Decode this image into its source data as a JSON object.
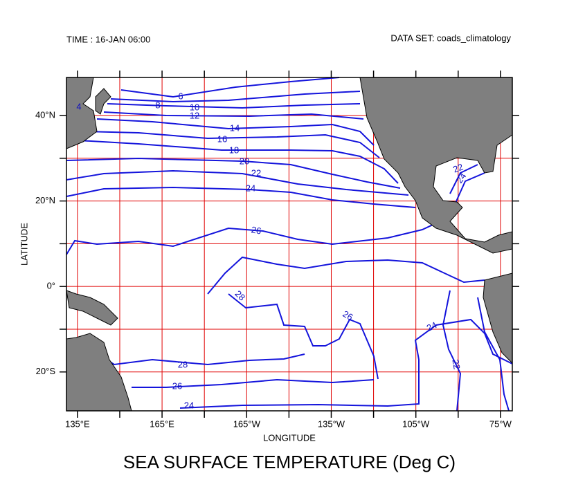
{
  "header": {
    "time": "TIME : 16-JAN 06:00",
    "dataset": "DATA SET: coads_climatology"
  },
  "title": "SEA SURFACE TEMPERATURE (Deg C)",
  "map": {
    "lonlim": [
      131.1,
      289.2
    ],
    "latlim": [
      48.9,
      -29.1
    ],
    "lon_grid": [
      135,
      150,
      165,
      180,
      195,
      210,
      225,
      240,
      255,
      270,
      285
    ],
    "lat_grid": [
      40,
      30,
      20,
      10,
      0,
      -10,
      -20
    ],
    "x_axis": {
      "label": "LONGITUDE",
      "ticks": [
        {
          "value": 135,
          "label": "135°E"
        },
        {
          "value": 165,
          "label": "165°E"
        },
        {
          "value": 195,
          "label": "165°W"
        },
        {
          "value": 225,
          "label": "135°W"
        },
        {
          "value": 255,
          "label": "105°W"
        },
        {
          "value": 285,
          "label": "75°W"
        }
      ]
    },
    "y_axis": {
      "label": "LATITUDE",
      "ticks": [
        {
          "value": 40,
          "label": "40°N"
        },
        {
          "value": 20,
          "label": "20°N"
        },
        {
          "value": 0,
          "label": "0°"
        },
        {
          "value": -20,
          "label": "20°S"
        }
      ]
    },
    "contour_labels": [
      4,
      6,
      8,
      10,
      12,
      14,
      16,
      18,
      20,
      22,
      24,
      26,
      28,
      26,
      24,
      22,
      24,
      28,
      26,
      24,
      22
    ]
  }
}
